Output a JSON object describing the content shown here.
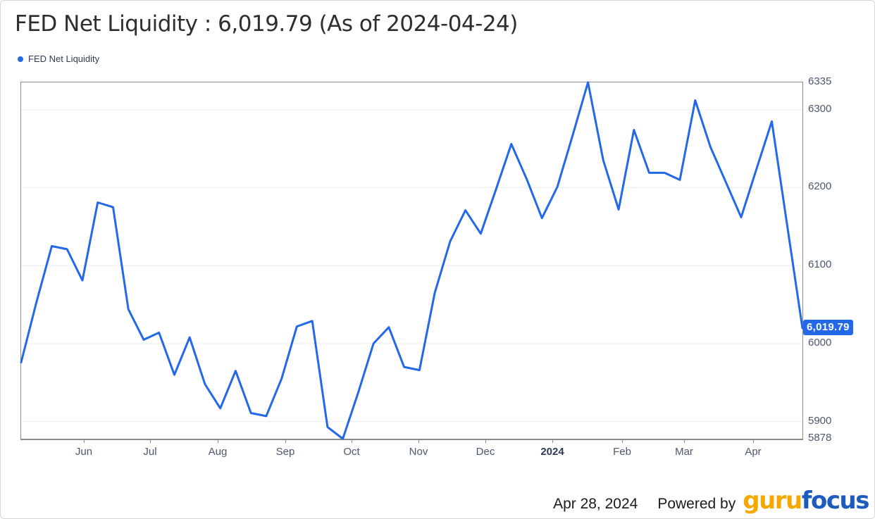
{
  "card": {
    "title": "FED Net Liquidity : 6,019.79 (As of 2024-04-24)"
  },
  "chart_data": {
    "type": "line",
    "title": "FED Net Liquidity : 6,019.79 (As of 2024-04-24)",
    "legend_position": "top-left",
    "grid": "horizontal",
    "x_start_date": "2023-05-03",
    "x_end_date": "2024-04-24",
    "x_interval": "weekly",
    "ylim": [
      5878,
      6335
    ],
    "y_ticks": [
      6335,
      6300,
      6200,
      6100,
      6000,
      5900,
      5878
    ],
    "y_gridlines": [
      6300,
      6200,
      6100,
      6000,
      5900
    ],
    "x_ticks": [
      {
        "label": "Jun",
        "pos": 90
      },
      {
        "label": "Jul",
        "pos": 184
      },
      {
        "label": "Aug",
        "pos": 280
      },
      {
        "label": "Sep",
        "pos": 376
      },
      {
        "label": "Oct",
        "pos": 470
      },
      {
        "label": "Nov",
        "pos": 565
      },
      {
        "label": "Dec",
        "pos": 660
      },
      {
        "label": "2024",
        "pos": 755,
        "bold": true
      },
      {
        "label": "Feb",
        "pos": 854
      },
      {
        "label": "Mar",
        "pos": 942
      },
      {
        "label": "Apr",
        "pos": 1040
      }
    ],
    "series": [
      {
        "name": "FED Net Liquidity",
        "color": "#2268e8",
        "values": [
          5976,
          6053,
          6125,
          6121,
          6081,
          6181,
          6175,
          6044,
          6005,
          6014,
          5960,
          6008,
          5948,
          5917,
          5965,
          5911,
          5907,
          5955,
          6022,
          6029,
          5893,
          5878,
          5937,
          6000,
          6021,
          5970,
          5966,
          6065,
          6131,
          6171,
          6141,
          6198,
          6256,
          6211,
          6161,
          6201,
          6267,
          6335,
          6235,
          6172,
          6274,
          6219,
          6219,
          6210,
          6312,
          6252,
          6207,
          6162,
          6224,
          6285,
          6152,
          6019.79
        ]
      }
    ],
    "last_value": 6019.79,
    "last_value_label": "6,019.79",
    "gridline_color": "#e9eef3"
  },
  "footer": {
    "date": "Apr 28, 2024",
    "powered_by": "Powered by",
    "logo": {
      "part1": "guru",
      "part2": "focus",
      "color1": "#f5a800",
      "color2": "#1d5bbf"
    }
  }
}
